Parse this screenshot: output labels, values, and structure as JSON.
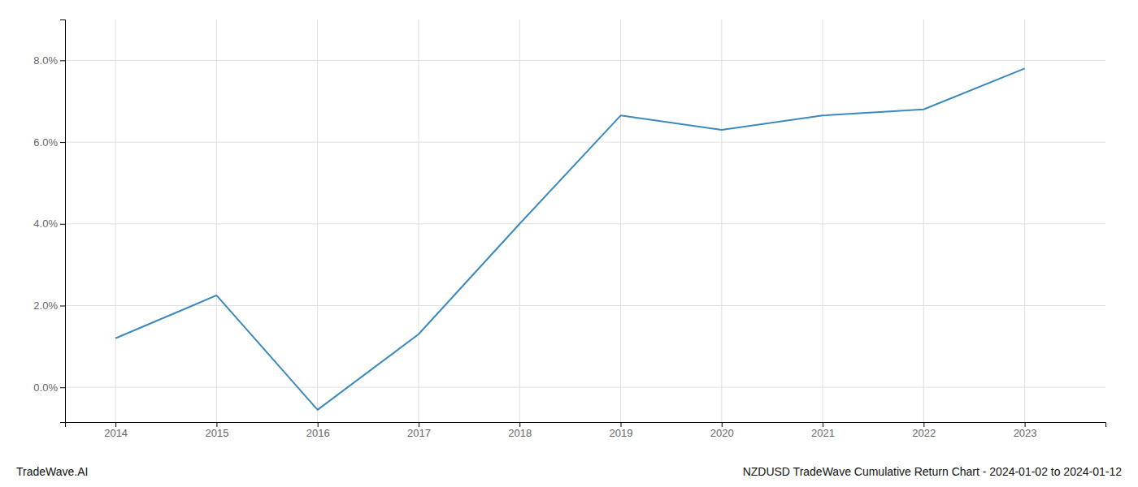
{
  "chart_data": {
    "type": "line",
    "x": [
      2014,
      2015,
      2016,
      2017,
      2018,
      2019,
      2020,
      2021,
      2022,
      2023
    ],
    "values": [
      1.2,
      2.25,
      -0.55,
      1.3,
      4.0,
      6.65,
      6.3,
      6.65,
      6.8,
      7.8
    ],
    "color": "#3a8abf",
    "xlim": [
      2013.5,
      2023.8
    ],
    "ylim": [
      -0.85,
      9.0
    ],
    "xticks": [
      2014,
      2015,
      2016,
      2017,
      2018,
      2019,
      2020,
      2021,
      2022,
      2023
    ],
    "yticks": [
      {
        "value": 0.0,
        "label": "0.0%"
      },
      {
        "value": 2.0,
        "label": "2.0%"
      },
      {
        "value": 4.0,
        "label": "4.0%"
      },
      {
        "value": 6.0,
        "label": "6.0%"
      },
      {
        "value": 8.0,
        "label": "8.0%"
      }
    ],
    "grid": true,
    "annotations": [
      "TradeWave.AI",
      "NZDUSD TradeWave Cumulative Return Chart - 2024-01-02 to 2024-01-12"
    ]
  }
}
